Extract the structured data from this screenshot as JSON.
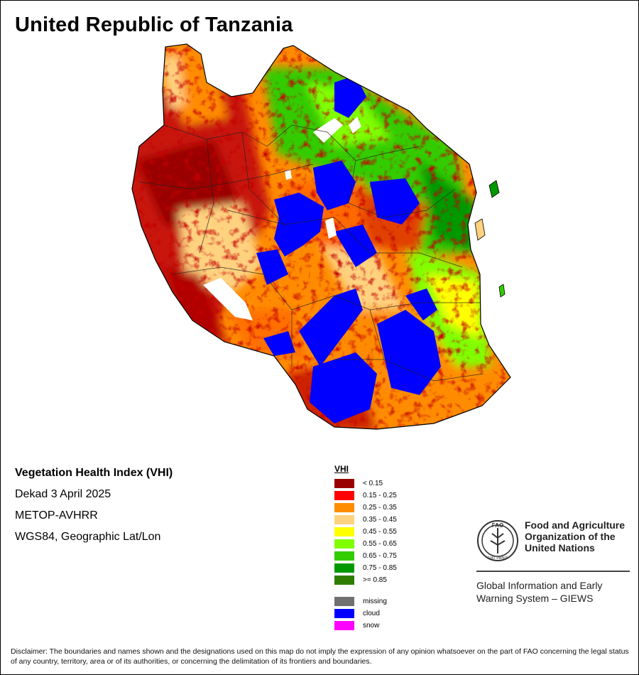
{
  "title": "United Republic of Tanzania",
  "info": {
    "product": "Vegetation Health Index (VHI)",
    "period": "Dekad 3 April 2025",
    "sensor": "METOP-AVHRR",
    "projection": "WGS84, Geographic Lat/Lon"
  },
  "legend": {
    "title": "VHI",
    "classes": [
      {
        "label": "< 0.15",
        "color": "#990000"
      },
      {
        "label": "0.15 - 0.25",
        "color": "#ff0000"
      },
      {
        "label": "0.25 - 0.35",
        "color": "#ff8c00"
      },
      {
        "label": "0.35 - 0.45",
        "color": "#ffd27f"
      },
      {
        "label": "0.45 - 0.55",
        "color": "#ffff00"
      },
      {
        "label": "0.55 - 0.65",
        "color": "#80ff00"
      },
      {
        "label": "0.65 - 0.75",
        "color": "#33cc00"
      },
      {
        "label": "0.75 - 0.85",
        "color": "#009900"
      },
      {
        "label": ">= 0.85",
        "color": "#2e7d00"
      }
    ],
    "special": [
      {
        "label": "missing",
        "color": "#707070"
      },
      {
        "label": "cloud",
        "color": "#0000ff"
      },
      {
        "label": "snow",
        "color": "#ff00ff"
      }
    ]
  },
  "fao": {
    "logo_text": "FAO",
    "logo_motto": "FIAT PANIS",
    "name_line1": "Food and Agriculture",
    "name_line2": "Organization of the",
    "name_line3": "United Nations",
    "sub_line1": "Global Information and Early",
    "sub_line2": "Warning System – GIEWS"
  },
  "disclaimer": "Disclaimer: The boundaries and names shown and the designations used on this map do not imply the expression of any opinion whatsoever on the part of FAO concerning the legal status of any country, territory, area or of its authorities, or concerning the delimitation of its frontiers and boundaries."
}
